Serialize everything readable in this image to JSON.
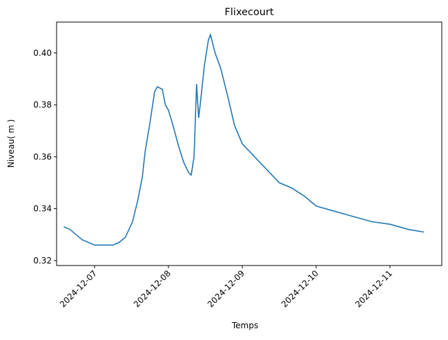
{
  "chart_data": {
    "type": "line",
    "title": "Flixecourt",
    "x_label": "Temps",
    "y_label": "Niveau( m )",
    "x": [
      "2024-12-06 14:00",
      "2024-12-06 16:00",
      "2024-12-06 18:00",
      "2024-12-06 20:00",
      "2024-12-06 22:00",
      "2024-12-07 00:00",
      "2024-12-07 02:00",
      "2024-12-07 04:00",
      "2024-12-07 06:00",
      "2024-12-07 08:00",
      "2024-12-07 10:00",
      "2024-12-07 12:20",
      "2024-12-07 14:00",
      "2024-12-07 15:30",
      "2024-12-07 16:25",
      "2024-12-07 18:00",
      "2024-12-07 19:30",
      "2024-12-07 20:25",
      "2024-12-07 22:00",
      "2024-12-07 23:00",
      "2024-12-08 00:00",
      "2024-12-08 01:30",
      "2024-12-08 03:20",
      "2024-12-08 04:55",
      "2024-12-08 06:30",
      "2024-12-08 07:25",
      "2024-12-08 08:20",
      "2024-12-08 09:10",
      "2024-12-08 09:50",
      "2024-12-08 10:20",
      "2024-12-08 11:40",
      "2024-12-08 13:00",
      "2024-12-08 13:40",
      "2024-12-08 15:10",
      "2024-12-08 17:00",
      "2024-12-08 19:20",
      "2024-12-08 21:30",
      "2024-12-09 00:00",
      "2024-12-09 04:00",
      "2024-12-09 08:00",
      "2024-12-09 12:00",
      "2024-12-09 16:00",
      "2024-12-09 20:00",
      "2024-12-10 00:00",
      "2024-12-10 06:00",
      "2024-12-10 12:00",
      "2024-12-10 18:00",
      "2024-12-11 00:00",
      "2024-12-11 06:00",
      "2024-12-11 11:00"
    ],
    "series": [
      {
        "name": "Niveau",
        "color": "#1f77b4",
        "values": [
          0.333,
          0.332,
          0.33,
          0.328,
          0.327,
          0.326,
          0.326,
          0.326,
          0.326,
          0.327,
          0.329,
          0.335,
          0.343,
          0.352,
          0.362,
          0.373,
          0.385,
          0.387,
          0.386,
          0.38,
          0.378,
          0.372,
          0.364,
          0.358,
          0.354,
          0.353,
          0.36,
          0.388,
          0.375,
          0.38,
          0.395,
          0.405,
          0.407,
          0.4,
          0.394,
          0.383,
          0.372,
          0.365,
          0.36,
          0.355,
          0.35,
          0.348,
          0.345,
          0.341,
          0.339,
          0.337,
          0.335,
          0.334,
          0.332,
          0.331
        ]
      }
    ],
    "xlim": [
      "2024-12-06 11:40",
      "2024-12-11 16:50"
    ],
    "xticks": [
      "2024-12-07",
      "2024-12-08",
      "2024-12-09",
      "2024-12-10",
      "2024-12-11"
    ],
    "ylim": [
      0.3181,
      0.4119
    ],
    "yticks": [
      0.32,
      0.34,
      0.36,
      0.38,
      {
        "value": 0.4,
        "label": "0.40"
      }
    ]
  }
}
